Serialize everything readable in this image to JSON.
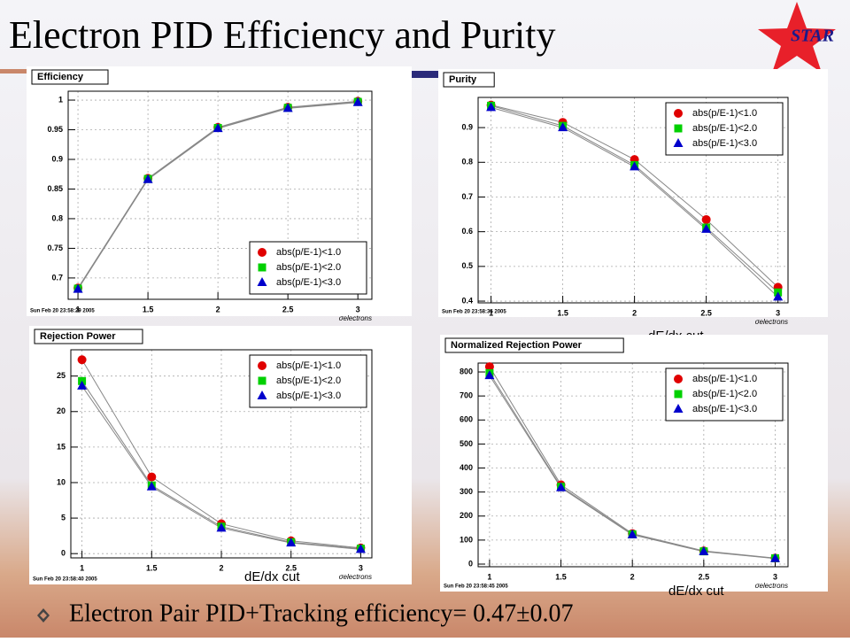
{
  "header": {
    "title": "Electron PID Efficiency and Purity",
    "logo": "STAR"
  },
  "chart_data": [
    {
      "type": "line",
      "title": "Efficiency",
      "timestamp": "Sun Feb 20 23:58:29 2005",
      "x_label": "σelectrons",
      "annotation": "dE/dx cut",
      "x": [
        1,
        1.5,
        2,
        2.5,
        3
      ],
      "xlim": [
        0.93,
        3.1
      ],
      "xticks": [
        1,
        1.5,
        2,
        2.5,
        3
      ],
      "ylim": [
        0.664,
        1.015
      ],
      "yticks": [
        0.7,
        0.75,
        0.8,
        0.85,
        0.9,
        0.95,
        1
      ],
      "grid": true,
      "legend": "bottom-right",
      "series": [
        {
          "name": "abs(p/E-1)<1.0",
          "color": "#e00000",
          "marker": "circle",
          "values": [
            0.683,
            0.868,
            0.954,
            0.988,
            0.998
          ]
        },
        {
          "name": "abs(p/E-1)<2.0",
          "color": "#00d000",
          "marker": "square",
          "values": [
            0.682,
            0.867,
            0.953,
            0.987,
            0.997
          ]
        },
        {
          "name": "abs(p/E-1)<3.0",
          "color": "#0000cc",
          "marker": "triangle",
          "values": [
            0.681,
            0.866,
            0.952,
            0.986,
            0.996
          ]
        }
      ]
    },
    {
      "type": "line",
      "title": "Purity",
      "timestamp": "Sun Feb 20 23:58:35 2005",
      "x_label": "σelectrons",
      "annotation": "dE/dx cut",
      "x": [
        1,
        1.5,
        2,
        2.5,
        3
      ],
      "xlim": [
        0.91,
        3.07
      ],
      "xticks": [
        1,
        1.5,
        2,
        2.5,
        3
      ],
      "ylim": [
        0.395,
        0.987
      ],
      "yticks": [
        0.4,
        0.5,
        0.6,
        0.7,
        0.8,
        0.9
      ],
      "grid": true,
      "legend": "top-right",
      "series": [
        {
          "name": "abs(p/E-1)<1.0",
          "color": "#e00000",
          "marker": "circle",
          "values": [
            0.965,
            0.915,
            0.808,
            0.635,
            0.44
          ]
        },
        {
          "name": "abs(p/E-1)<2.0",
          "color": "#00d000",
          "marker": "square",
          "values": [
            0.963,
            0.905,
            0.792,
            0.612,
            0.425
          ]
        },
        {
          "name": "abs(p/E-1)<3.0",
          "color": "#0000cc",
          "marker": "triangle",
          "values": [
            0.958,
            0.9,
            0.787,
            0.607,
            0.412
          ]
        }
      ]
    },
    {
      "type": "line",
      "title": "Rejection Power",
      "timestamp": "Sun Feb 20 23:58:40 2005",
      "x_label": "σelectrons",
      "annotation": "dE/dx cut",
      "x": [
        1,
        1.5,
        2,
        2.5,
        3
      ],
      "xlim": [
        0.92,
        3.08
      ],
      "xticks": [
        1,
        1.5,
        2,
        2.5,
        3
      ],
      "ylim": [
        -0.6,
        28.7
      ],
      "yticks": [
        0,
        5,
        10,
        15,
        20,
        25
      ],
      "grid": true,
      "legend": "top-right",
      "series": [
        {
          "name": "abs(p/E-1)<1.0",
          "color": "#e00000",
          "marker": "circle",
          "values": [
            27.3,
            10.8,
            4.2,
            1.8,
            0.8
          ]
        },
        {
          "name": "abs(p/E-1)<2.0",
          "color": "#00d000",
          "marker": "square",
          "values": [
            24.3,
            9.6,
            3.8,
            1.6,
            0.7
          ]
        },
        {
          "name": "abs(p/E-1)<3.0",
          "color": "#0000cc",
          "marker": "triangle",
          "values": [
            23.6,
            9.4,
            3.6,
            1.5,
            0.6
          ]
        }
      ]
    },
    {
      "type": "line",
      "title": "Normalized Rejection Power",
      "timestamp": "Sun Feb 20 23:58:45 2005",
      "x_label": "σelectrons",
      "annotation": "dE/dx cut",
      "x": [
        1,
        1.5,
        2,
        2.5,
        3
      ],
      "xlim": [
        0.92,
        3.09
      ],
      "xticks": [
        1,
        1.5,
        2,
        2.5,
        3
      ],
      "ylim": [
        -11,
        837
      ],
      "yticks": [
        0,
        100,
        200,
        300,
        400,
        500,
        600,
        700,
        800
      ],
      "grid": true,
      "legend": "top-right",
      "series": [
        {
          "name": "abs(p/E-1)<1.0",
          "color": "#e00000",
          "marker": "circle",
          "values": [
            822,
            330,
            127,
            55,
            25
          ]
        },
        {
          "name": "abs(p/E-1)<2.0",
          "color": "#00d000",
          "marker": "square",
          "values": [
            795,
            322,
            124,
            53,
            24
          ]
        },
        {
          "name": "abs(p/E-1)<3.0",
          "color": "#0000cc",
          "marker": "triangle",
          "values": [
            785,
            318,
            122,
            52,
            23
          ]
        }
      ]
    }
  ],
  "footer": {
    "text": "Electron Pair PID+Tracking efficiency= 0.47±0.07"
  }
}
